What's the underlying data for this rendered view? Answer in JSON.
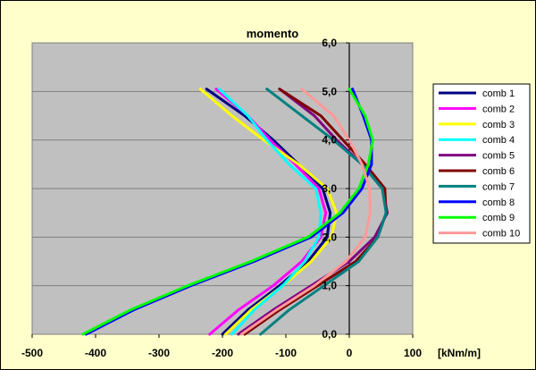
{
  "chart_data": {
    "type": "line",
    "title": "momento",
    "xlabel": "[kNm/m]",
    "ylabel": "",
    "xlim": [
      -500,
      100
    ],
    "ylim": [
      0,
      6
    ],
    "xticks": [
      -500,
      -400,
      -300,
      -200,
      -100,
      0,
      100
    ],
    "yticks": [
      0,
      1,
      2,
      3,
      4,
      5,
      6
    ],
    "xtick_labels": [
      "-500",
      "-400",
      "-300",
      "-200",
      "-100",
      "0",
      "100"
    ],
    "ytick_labels": [
      "0,0",
      "1,0",
      "2,0",
      "3,0",
      "4,0",
      "5,0",
      "6,0"
    ],
    "grid": "horizontal",
    "legend_position": "right",
    "series": [
      {
        "name": "comb 1",
        "color": "#000080",
        "points": [
          [
            -200,
            0
          ],
          [
            -160,
            0.5
          ],
          [
            -110,
            1.0
          ],
          [
            -65,
            1.5
          ],
          [
            -35,
            2.0
          ],
          [
            -30,
            2.5
          ],
          [
            -42,
            3.0
          ],
          [
            -80,
            3.5
          ],
          [
            -120,
            4.0
          ],
          [
            -165,
            4.5
          ],
          [
            -225,
            5.05
          ]
        ]
      },
      {
        "name": "comb 2",
        "color": "#ff00ff",
        "points": [
          [
            -220,
            0
          ],
          [
            -175,
            0.5
          ],
          [
            -120,
            1.0
          ],
          [
            -75,
            1.5
          ],
          [
            -45,
            2.0
          ],
          [
            -37,
            2.5
          ],
          [
            -48,
            3.0
          ],
          [
            -85,
            3.5
          ],
          [
            -125,
            4.0
          ],
          [
            -160,
            4.5
          ],
          [
            -210,
            5.05
          ]
        ]
      },
      {
        "name": "comb 3",
        "color": "#ffff00",
        "points": [
          [
            -195,
            0
          ],
          [
            -155,
            0.5
          ],
          [
            -105,
            1.0
          ],
          [
            -60,
            1.5
          ],
          [
            -28,
            2.0
          ],
          [
            -20,
            2.5
          ],
          [
            -35,
            3.0
          ],
          [
            -80,
            3.5
          ],
          [
            -135,
            4.0
          ],
          [
            -185,
            4.5
          ],
          [
            -235,
            5.05
          ]
        ]
      },
      {
        "name": "comb 4",
        "color": "#00ffff",
        "points": [
          [
            -185,
            0
          ],
          [
            -150,
            0.5
          ],
          [
            -105,
            1.0
          ],
          [
            -70,
            1.5
          ],
          [
            -48,
            2.0
          ],
          [
            -45,
            2.5
          ],
          [
            -53,
            3.0
          ],
          [
            -95,
            3.5
          ],
          [
            -130,
            4.0
          ],
          [
            -160,
            4.5
          ],
          [
            -205,
            5.05
          ]
        ]
      },
      {
        "name": "comb 5",
        "color": "#800080",
        "points": [
          [
            -175,
            0
          ],
          [
            -120,
            0.5
          ],
          [
            -60,
            1.0
          ],
          [
            0,
            1.5
          ],
          [
            40,
            2.0
          ],
          [
            60,
            2.5
          ],
          [
            52,
            3.0
          ],
          [
            20,
            3.5
          ],
          [
            -20,
            4.0
          ],
          [
            -55,
            4.5
          ],
          [
            -110,
            5.05
          ]
        ]
      },
      {
        "name": "comb 6",
        "color": "#800000",
        "points": [
          [
            -165,
            0
          ],
          [
            -110,
            0.5
          ],
          [
            -50,
            1.0
          ],
          [
            10,
            1.5
          ],
          [
            45,
            2.0
          ],
          [
            58,
            2.5
          ],
          [
            56,
            3.0
          ],
          [
            25,
            3.5
          ],
          [
            -10,
            4.0
          ],
          [
            -45,
            4.5
          ],
          [
            -110,
            5.05
          ]
        ]
      },
      {
        "name": "comb 7",
        "color": "#008080",
        "points": [
          [
            -140,
            0
          ],
          [
            -95,
            0.5
          ],
          [
            -40,
            1.0
          ],
          [
            15,
            1.5
          ],
          [
            45,
            2.0
          ],
          [
            58,
            2.5
          ],
          [
            52,
            3.0
          ],
          [
            20,
            3.5
          ],
          [
            -25,
            4.0
          ],
          [
            -75,
            4.5
          ],
          [
            -130,
            5.05
          ]
        ]
      },
      {
        "name": "comb 8",
        "color": "#0000ff",
        "points": [
          [
            -415,
            0
          ],
          [
            -340,
            0.5
          ],
          [
            -250,
            1.0
          ],
          [
            -150,
            1.5
          ],
          [
            -60,
            2.0
          ],
          [
            -10,
            2.5
          ],
          [
            20,
            3.0
          ],
          [
            35,
            3.5
          ],
          [
            35,
            4.0
          ],
          [
            22,
            4.5
          ],
          [
            5,
            5.05
          ]
        ]
      },
      {
        "name": "comb 9",
        "color": "#00ff00",
        "points": [
          [
            -420,
            0
          ],
          [
            -345,
            0.5
          ],
          [
            -255,
            1.0
          ],
          [
            -155,
            1.5
          ],
          [
            -65,
            2.0
          ],
          [
            -15,
            2.5
          ],
          [
            15,
            3.0
          ],
          [
            30,
            3.5
          ],
          [
            37,
            4.0
          ],
          [
            25,
            4.5
          ],
          [
            0,
            5.05
          ]
        ]
      },
      {
        "name": "comb 10",
        "color": "#ff9999",
        "points": [
          [
            -170,
            0
          ],
          [
            -115,
            0.5
          ],
          [
            -55,
            1.0
          ],
          [
            -5,
            1.5
          ],
          [
            25,
            2.0
          ],
          [
            33,
            2.5
          ],
          [
            32,
            3.0
          ],
          [
            20,
            3.5
          ],
          [
            0,
            4.0
          ],
          [
            -25,
            4.5
          ],
          [
            -75,
            5.05
          ]
        ]
      }
    ]
  }
}
